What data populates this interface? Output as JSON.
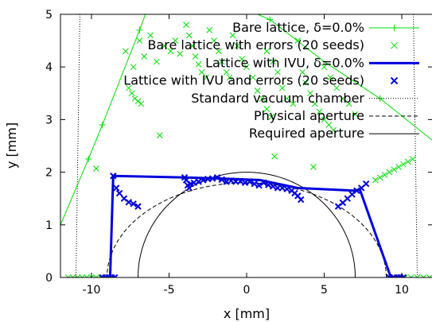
{
  "chart_data": {
    "type": "scatter",
    "title": "",
    "xlabel": "x [mm]",
    "ylabel": "y [mm]",
    "xlim": [
      -12,
      12
    ],
    "ylim": [
      0,
      5
    ],
    "xticks": [
      -10,
      -5,
      0,
      5,
      10
    ],
    "yticks": [
      0,
      1,
      2,
      3,
      4,
      5
    ],
    "xtick_labels": [
      "-10",
      "-5",
      "0",
      "5",
      "10"
    ],
    "ytick_labels": [
      "0",
      "1",
      "2",
      "3",
      "4",
      "5"
    ],
    "grid": false,
    "legend_position": "top-right",
    "series": [
      {
        "name": "Bare lattice, δ=0.0%",
        "style": "line-plus",
        "color": "#00dd00",
        "points": [
          [
            -12,
            1.0
          ],
          [
            -10.2,
            2.25
          ],
          [
            -9.3,
            2.9
          ],
          [
            -6.9,
            4.7
          ],
          [
            -6.4,
            5.1
          ],
          [
            -1.7,
            5.3
          ],
          [
            1.5,
            4.9
          ],
          [
            5.0,
            4.1
          ],
          [
            8.6,
            3.4
          ],
          [
            12,
            2.6
          ]
        ],
        "markers": [
          [
            -10.2,
            2.25
          ],
          [
            -9.3,
            2.9
          ],
          [
            -6.9,
            4.7
          ],
          [
            1.5,
            4.9
          ],
          [
            8.6,
            3.4
          ]
        ]
      },
      {
        "name": "Bare lattice with errors (20 seeds)",
        "style": "x",
        "color": "#00dd00",
        "points": [
          [
            -11.5,
            0
          ],
          [
            -11.2,
            0
          ],
          [
            -10.9,
            0
          ],
          [
            -10.6,
            0
          ],
          [
            -10.3,
            0
          ],
          [
            -10.0,
            0
          ],
          [
            -9.7,
            0
          ],
          [
            -9.4,
            0
          ],
          [
            -9.1,
            0
          ],
          [
            -8.8,
            0
          ],
          [
            -9.7,
            2.07
          ],
          [
            -7.6,
            3.6
          ],
          [
            -7.4,
            3.5
          ],
          [
            -7.2,
            3.4
          ],
          [
            -7.0,
            3.35
          ],
          [
            -6.8,
            3.3
          ],
          [
            -7.8,
            4.3
          ],
          [
            -7.3,
            4.0
          ],
          [
            -6.9,
            4.5
          ],
          [
            -6.6,
            4.2
          ],
          [
            -6.2,
            4.6
          ],
          [
            -5.8,
            4.1
          ],
          [
            -5.6,
            2.7
          ],
          [
            -5.3,
            4.4
          ],
          [
            -4.9,
            4.3
          ],
          [
            -4.6,
            4.5
          ],
          [
            -4.3,
            4.25
          ],
          [
            -3.9,
            4.8
          ],
          [
            -3.7,
            4.6
          ],
          [
            -3.5,
            4.4
          ],
          [
            -3.3,
            4.2
          ],
          [
            -3.1,
            4.05
          ],
          [
            -2.9,
            3.9
          ],
          [
            -2.6,
            3.8
          ],
          [
            -2.4,
            4.7
          ],
          [
            -2.1,
            4.5
          ],
          [
            -1.8,
            4.3
          ],
          [
            -1.6,
            4.1
          ],
          [
            -1.3,
            3.9
          ],
          [
            -1.1,
            3.8
          ],
          [
            -0.9,
            4.6
          ],
          [
            -0.6,
            4.4
          ],
          [
            -0.3,
            4.15
          ],
          [
            0.0,
            4.0
          ],
          [
            0.4,
            3.8
          ],
          [
            0.7,
            3.55
          ],
          [
            1.0,
            3.4
          ],
          [
            1.3,
            3.2
          ],
          [
            1.6,
            3.05
          ],
          [
            1.3,
            4.3
          ],
          [
            1.7,
            4.1
          ],
          [
            2.0,
            3.9
          ],
          [
            2.3,
            3.6
          ],
          [
            2.6,
            3.4
          ],
          [
            3.0,
            3.3
          ],
          [
            3.3,
            4.5
          ],
          [
            3.6,
            3.9
          ],
          [
            3.8,
            3.7
          ],
          [
            4.1,
            3.5
          ],
          [
            4.4,
            3.3
          ],
          [
            4.7,
            3.15
          ],
          [
            5.0,
            3.0
          ],
          [
            5.3,
            2.9
          ],
          [
            5.6,
            2.8
          ],
          [
            5.0,
            4.0
          ],
          [
            5.4,
            3.8
          ],
          [
            5.8,
            3.6
          ],
          [
            6.2,
            3.4
          ],
          [
            6.6,
            3.3
          ],
          [
            7.0,
            3.1
          ],
          [
            4.3,
            2.1
          ],
          [
            1.8,
            2.3
          ],
          [
            8.3,
            1.85
          ],
          [
            8.6,
            1.9
          ],
          [
            8.9,
            1.95
          ],
          [
            9.2,
            2.0
          ],
          [
            9.5,
            2.05
          ],
          [
            9.8,
            2.1
          ],
          [
            10.1,
            2.15
          ],
          [
            10.4,
            2.2
          ],
          [
            10.7,
            2.25
          ],
          [
            9.4,
            0
          ],
          [
            9.8,
            0
          ],
          [
            10.2,
            0
          ],
          [
            10.6,
            0
          ],
          [
            11.0,
            0
          ],
          [
            11.4,
            0
          ],
          [
            11.8,
            0
          ]
        ]
      },
      {
        "name": "Lattice with IVU, δ=0.0%",
        "style": "line-thick",
        "color": "#0000dd",
        "points": [
          [
            -9.2,
            0
          ],
          [
            -8.8,
            0
          ],
          [
            -8.6,
            1.93
          ],
          [
            -3.9,
            1.9
          ],
          [
            -1.7,
            1.88
          ],
          [
            0.9,
            1.85
          ],
          [
            3.3,
            1.7
          ],
          [
            6.9,
            1.65
          ],
          [
            7.3,
            1.67
          ],
          [
            9.3,
            0
          ],
          [
            9.6,
            0
          ]
        ]
      },
      {
        "name": "Lattice with IVU and errors (20 seeds)",
        "style": "x",
        "color": "#0000dd",
        "points": [
          [
            -9.3,
            0
          ],
          [
            -9.1,
            0
          ],
          [
            -8.9,
            0
          ],
          [
            -8.7,
            0
          ],
          [
            -8.5,
            0
          ],
          [
            -8.6,
            1.93
          ],
          [
            -8.4,
            1.7
          ],
          [
            -8.2,
            1.6
          ],
          [
            -7.9,
            1.5
          ],
          [
            -7.6,
            1.43
          ],
          [
            -7.3,
            1.4
          ],
          [
            -7.0,
            1.35
          ],
          [
            -4.0,
            1.9
          ],
          [
            -3.9,
            1.85
          ],
          [
            -3.8,
            1.75
          ],
          [
            -3.7,
            1.7
          ],
          [
            -3.6,
            1.78
          ],
          [
            -3.4,
            1.8
          ],
          [
            -3.1,
            1.82
          ],
          [
            -2.8,
            1.85
          ],
          [
            -2.5,
            1.87
          ],
          [
            -2.2,
            1.88
          ],
          [
            -1.9,
            1.9
          ],
          [
            -1.6,
            1.86
          ],
          [
            -1.3,
            1.82
          ],
          [
            -1.0,
            1.84
          ],
          [
            -0.7,
            1.82
          ],
          [
            -0.4,
            1.83
          ],
          [
            -0.1,
            1.8
          ],
          [
            0.2,
            1.82
          ],
          [
            0.5,
            1.78
          ],
          [
            0.8,
            1.75
          ],
          [
            1.1,
            1.8
          ],
          [
            1.4,
            1.76
          ],
          [
            1.7,
            1.73
          ],
          [
            2.0,
            1.7
          ],
          [
            2.3,
            1.7
          ],
          [
            2.6,
            1.68
          ],
          [
            2.9,
            1.65
          ],
          [
            3.1,
            1.6
          ],
          [
            3.3,
            1.55
          ],
          [
            3.5,
            1.48
          ],
          [
            5.9,
            1.35
          ],
          [
            6.2,
            1.42
          ],
          [
            6.5,
            1.5
          ],
          [
            6.8,
            1.58
          ],
          [
            7.1,
            1.65
          ],
          [
            7.4,
            1.7
          ],
          [
            7.7,
            1.78
          ],
          [
            9.2,
            0
          ],
          [
            9.5,
            0
          ],
          [
            9.7,
            0
          ],
          [
            9.9,
            0
          ],
          [
            10.1,
            0
          ]
        ]
      },
      {
        "name": "Standard vacuum chamber",
        "style": "dotted",
        "color": "#000000",
        "left": [
          [
            -11.0,
            0
          ],
          [
            -10.75,
            5.0
          ]
        ],
        "right": [
          [
            11.0,
            0
          ],
          [
            10.75,
            5.0
          ]
        ]
      },
      {
        "name": "Physical aperture",
        "style": "dashed",
        "color": "#000000",
        "shape": "half-ellipse",
        "center": [
          0,
          0
        ],
        "semi_x": 9.0,
        "semi_y": 1.8
      },
      {
        "name": "Required aperture",
        "style": "solid",
        "color": "#000000",
        "shape": "half-ellipse",
        "center": [
          0,
          0
        ],
        "semi_x": 7.0,
        "semi_y": 2.0
      }
    ]
  }
}
